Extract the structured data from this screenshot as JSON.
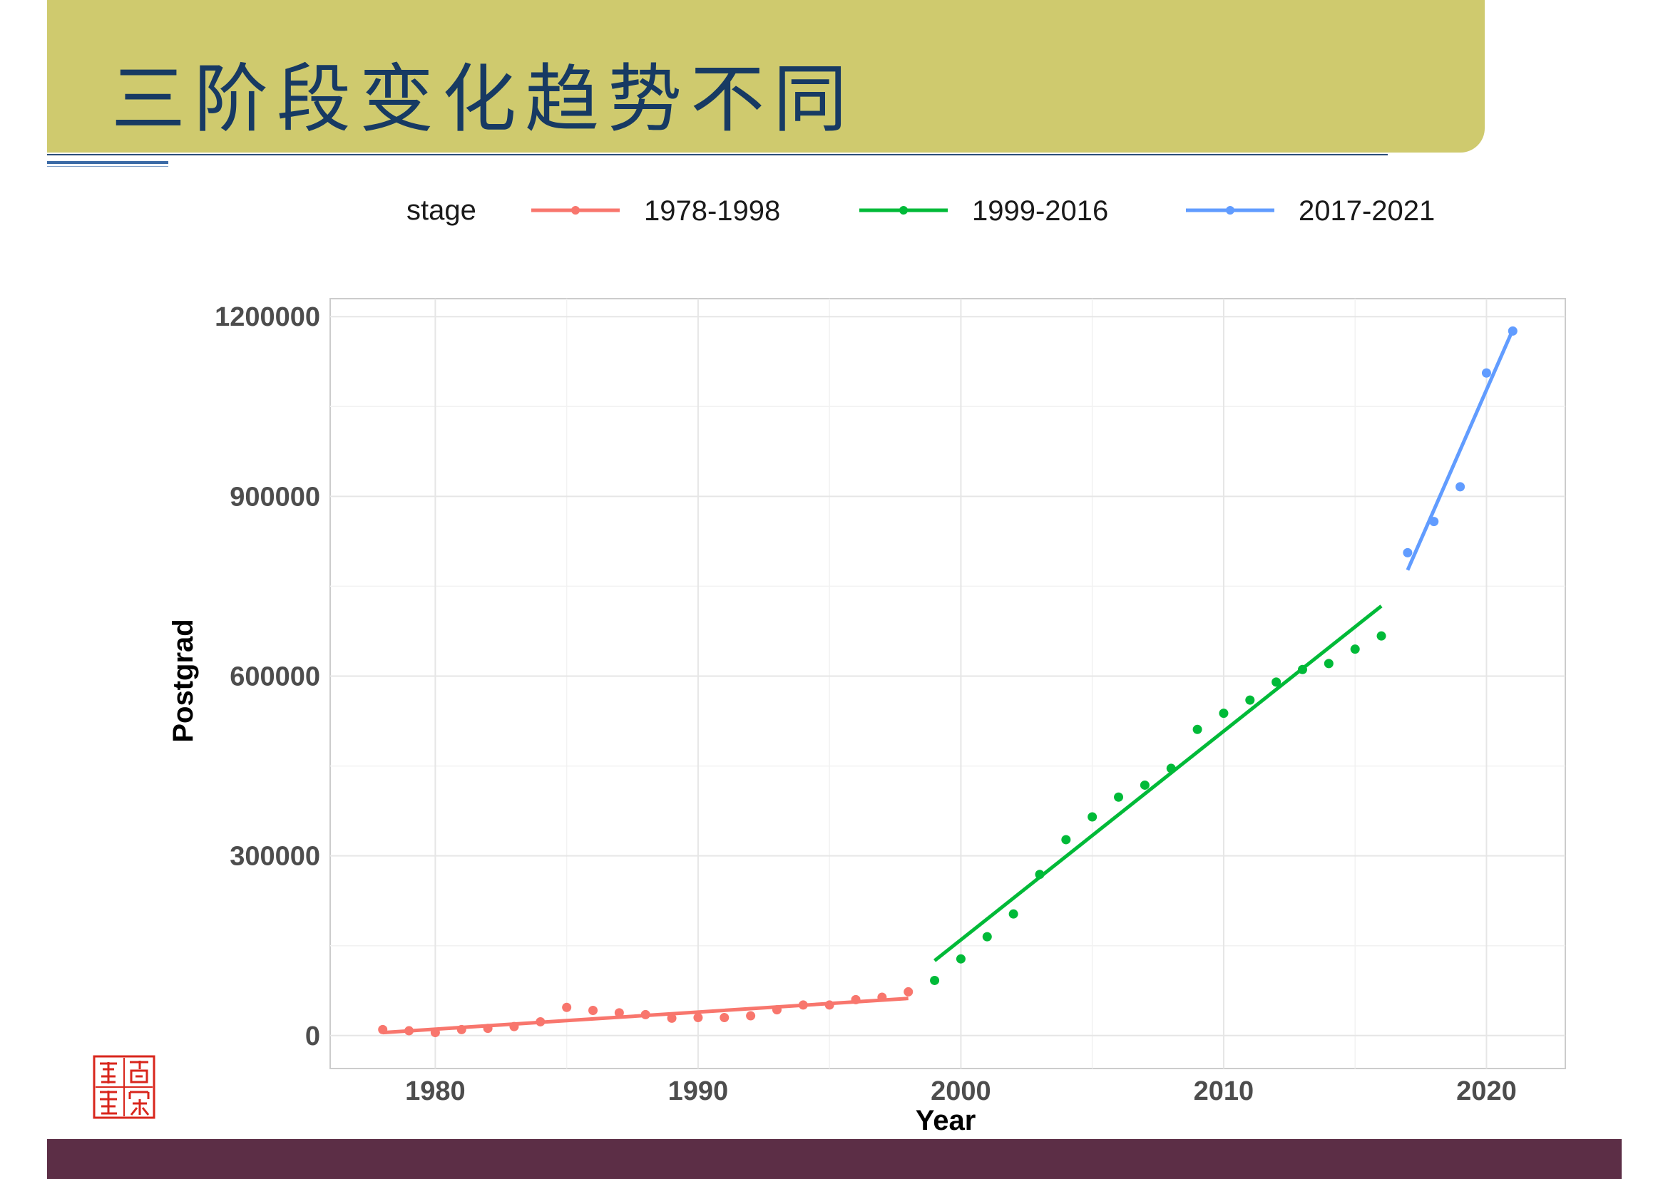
{
  "slide": {
    "title": "三阶段变化趋势不同"
  },
  "colors": {
    "banner": "#cfca6e",
    "title_text": "#173a63",
    "footer": "#5c2e46",
    "seal": "#d8261c"
  },
  "chart_data": {
    "type": "scatter",
    "xlabel": "Year",
    "ylabel": "Postgrad",
    "xlim": [
      1976,
      2023
    ],
    "ylim": [
      -55000,
      1230000
    ],
    "x_ticks": [
      1980,
      1990,
      2000,
      2010,
      2020
    ],
    "x_minor": [
      1985,
      1995,
      2005,
      2015
    ],
    "y_ticks": [
      0,
      300000,
      600000,
      900000,
      1200000
    ],
    "y_minor": [
      150000,
      450000,
      750000,
      1050000
    ],
    "grid": true,
    "legend": {
      "title": "stage",
      "position": "top"
    },
    "series": [
      {
        "name": "1978-1998",
        "color": "#f8766d",
        "x": [
          1978,
          1979,
          1980,
          1981,
          1982,
          1983,
          1984,
          1985,
          1986,
          1987,
          1988,
          1989,
          1990,
          1991,
          1992,
          1993,
          1994,
          1995,
          1996,
          1997,
          1998
        ],
        "y": [
          10000,
          8000,
          5000,
          10000,
          12000,
          15000,
          23000,
          47000,
          42000,
          38000,
          35000,
          29000,
          30000,
          30000,
          33000,
          43000,
          51000,
          51000,
          60000,
          64000,
          73000
        ],
        "fit": [
          [
            1978,
            5000
          ],
          [
            1998,
            62000
          ]
        ]
      },
      {
        "name": "1999-2016",
        "color": "#00ba38",
        "x": [
          1999,
          2000,
          2001,
          2002,
          2003,
          2004,
          2005,
          2006,
          2007,
          2008,
          2009,
          2010,
          2011,
          2012,
          2013,
          2014,
          2015,
          2016
        ],
        "y": [
          92000,
          128000,
          165000,
          203000,
          269000,
          327000,
          365000,
          398000,
          418000,
          446000,
          511000,
          538000,
          560000,
          590000,
          611000,
          621000,
          645000,
          667000
        ],
        "fit": [
          [
            1999,
            125000
          ],
          [
            2016,
            717000
          ]
        ]
      },
      {
        "name": "2017-2021",
        "color": "#619cff",
        "x": [
          2017,
          2018,
          2019,
          2020,
          2021
        ],
        "y": [
          806000,
          858000,
          916000,
          1106000,
          1176000
        ],
        "fit": [
          [
            2017,
            777000
          ],
          [
            2021,
            1178000
          ]
        ]
      }
    ]
  }
}
